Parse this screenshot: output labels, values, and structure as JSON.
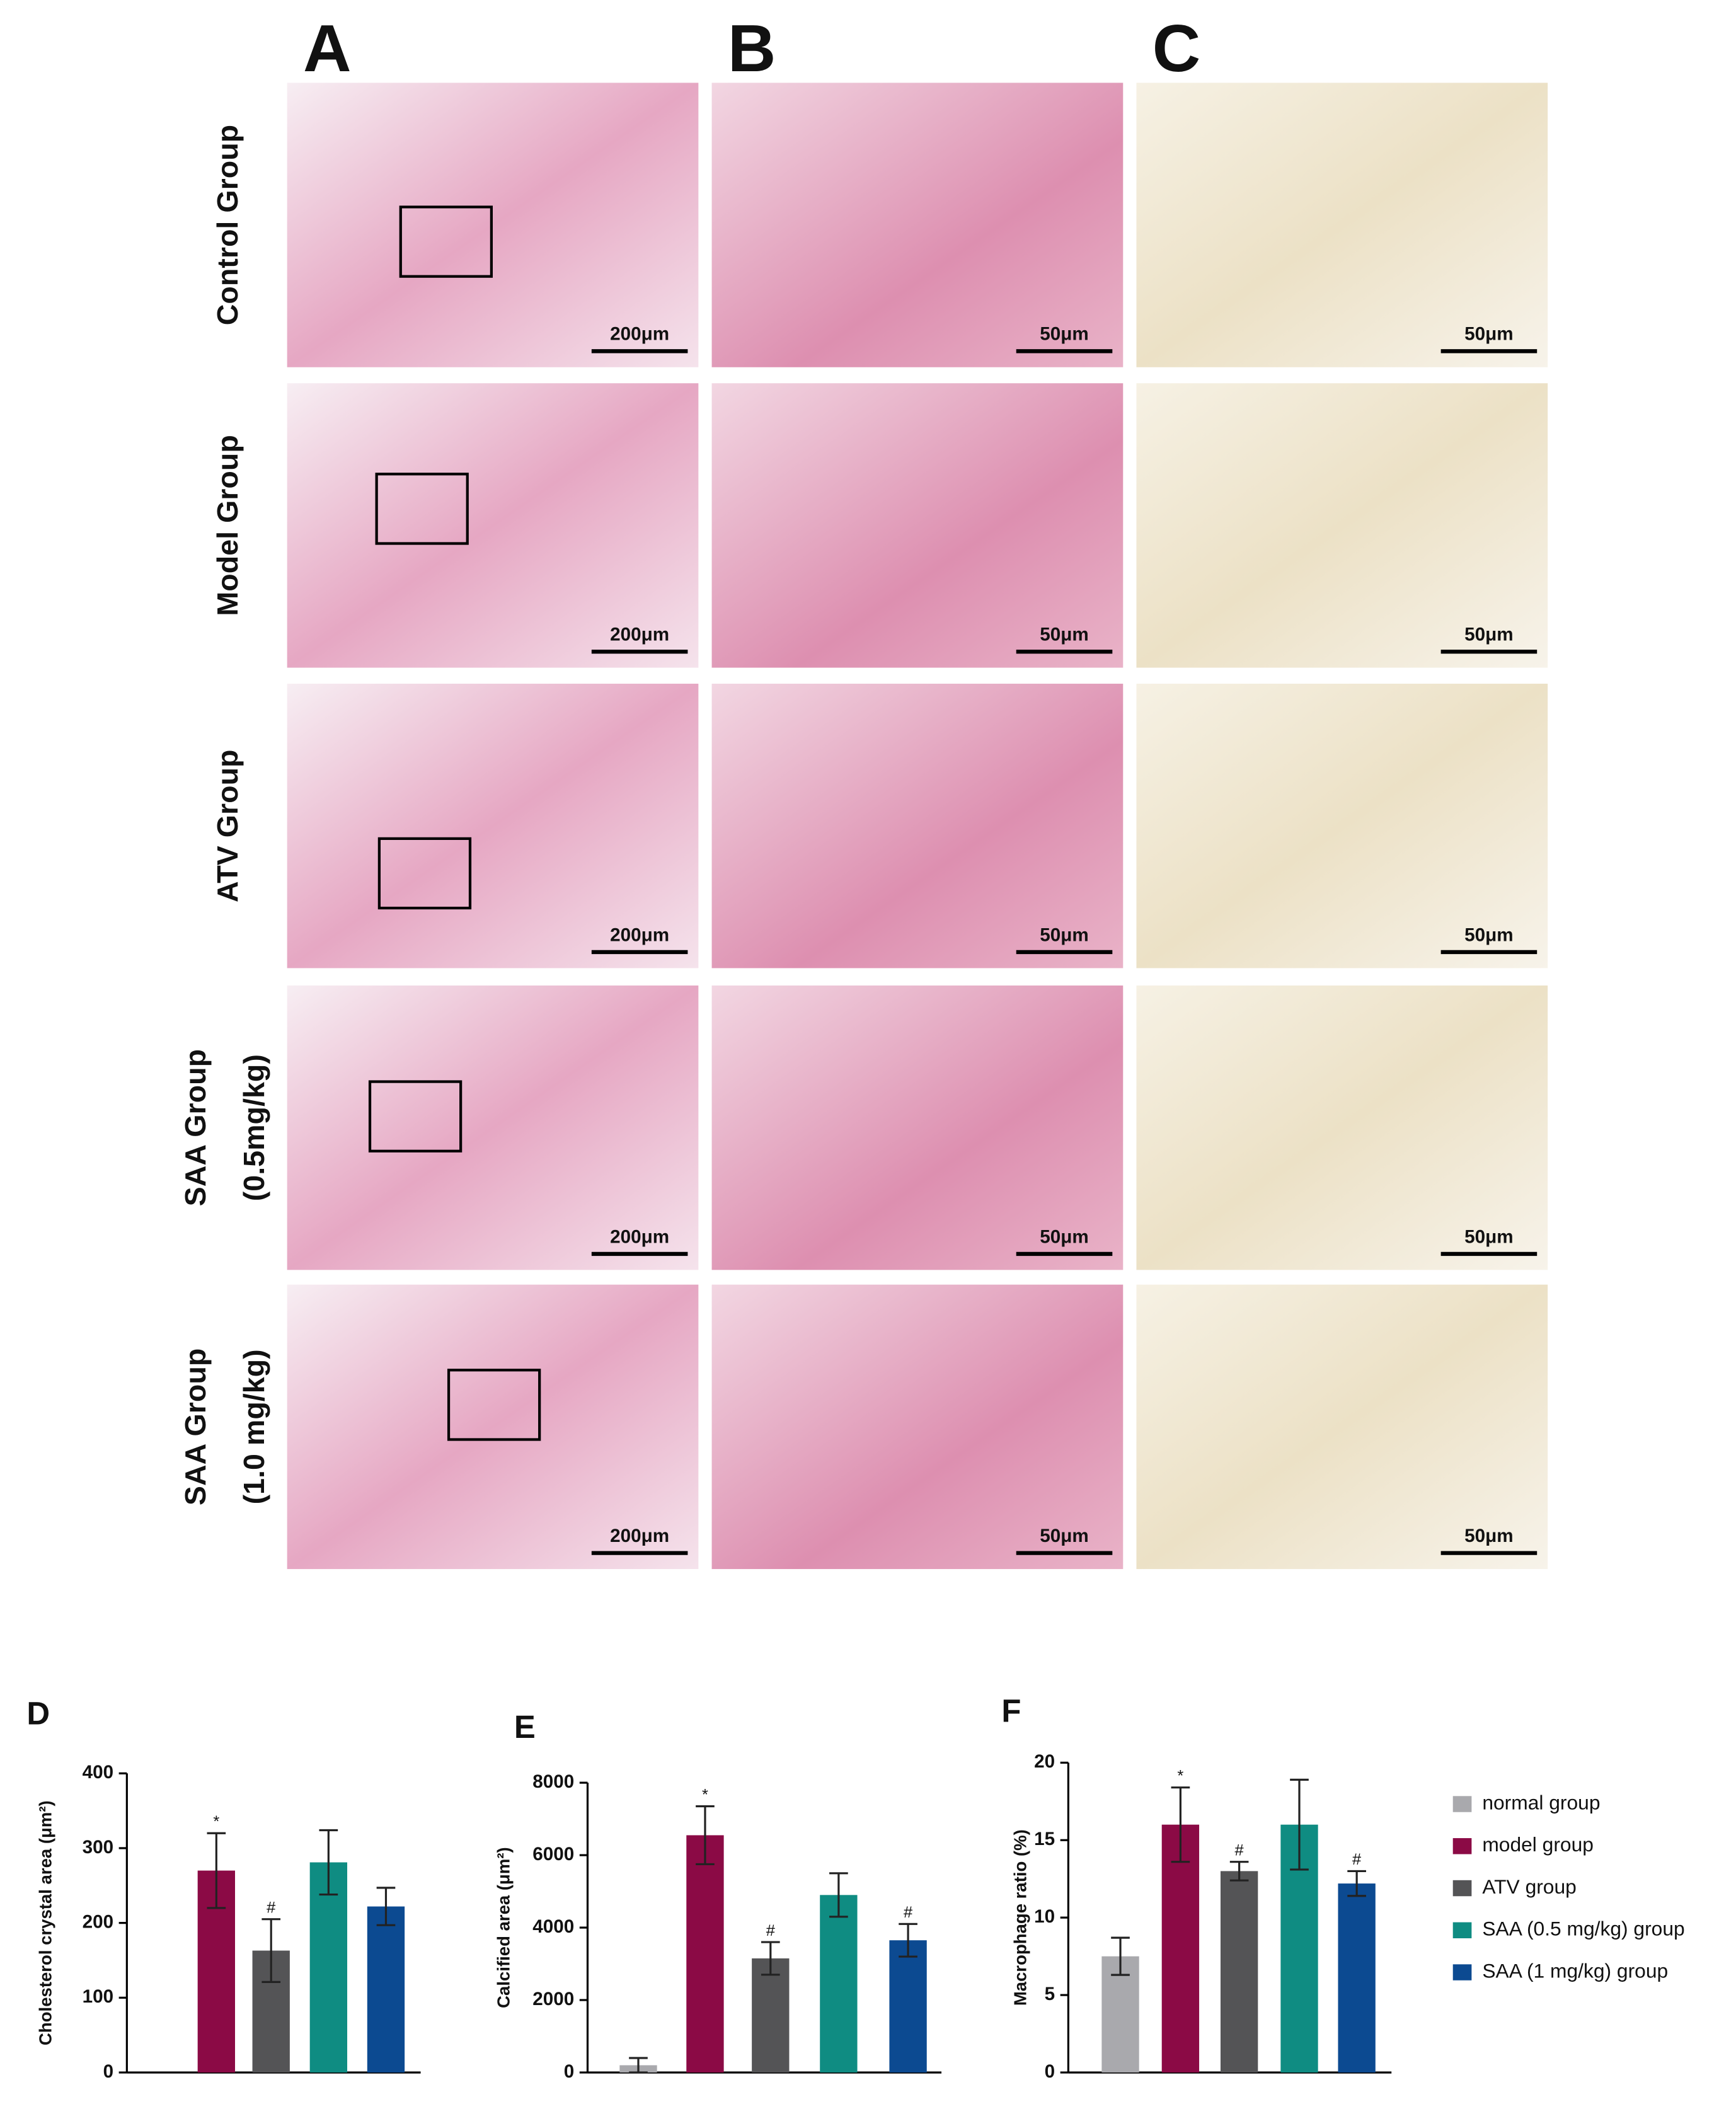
{
  "figure": {
    "columns": [
      "A",
      "B",
      "C"
    ],
    "rows": [
      {
        "label": [
          "Control Group"
        ],
        "scale_bars": [
          "200μm",
          "50μm",
          "50μm"
        ]
      },
      {
        "label": [
          "Model Group"
        ],
        "scale_bars": [
          "200μm",
          "50μm",
          "50μm"
        ]
      },
      {
        "label": [
          "ATV Group"
        ],
        "scale_bars": [
          "200μm",
          "50μm",
          "50μm"
        ]
      },
      {
        "label": [
          "SAA Group",
          "(0.5mg/kg)"
        ],
        "scale_bars": [
          "200μm",
          "50μm",
          "50μm"
        ]
      },
      {
        "label": [
          "SAA Group",
          "(1.0 mg/kg)"
        ],
        "scale_bars": [
          "200μm",
          "50μm",
          "50μm"
        ]
      }
    ]
  },
  "legend": [
    {
      "name": "normal group",
      "color": "#a9a9ad"
    },
    {
      "name": "model group",
      "color": "#8b0a45"
    },
    {
      "name": "ATV group",
      "color": "#545456"
    },
    {
      "name": "SAA (0.5 mg/kg) group",
      "color": "#0f8c82"
    },
    {
      "name": "SAA (1 mg/kg) group",
      "color": "#0c4a91"
    }
  ],
  "chart_data": [
    {
      "type": "bar",
      "panel": "D",
      "y_label": "Cholesterol crystal area (μm²)",
      "values": [
        null,
        270,
        163,
        281,
        222
      ],
      "errors": [
        null,
        50,
        42,
        43,
        25
      ],
      "annotations": [
        null,
        "*",
        "#",
        null,
        null
      ],
      "ylim": [
        0,
        400
      ],
      "yticks": [
        0,
        100,
        200,
        300,
        400
      ]
    },
    {
      "type": "bar",
      "panel": "E",
      "y_label": "Calcified area (μm²)",
      "values": [
        200,
        6550,
        3150,
        4900,
        3650
      ],
      "errors": [
        200,
        800,
        450,
        600,
        450
      ],
      "annotations": [
        null,
        "*",
        "#",
        null,
        "#"
      ],
      "ylim": [
        0,
        8000
      ],
      "yticks": [
        0,
        2000,
        4000,
        6000,
        8000
      ]
    },
    {
      "type": "bar",
      "panel": "F",
      "y_label": "Macrophage ratio (%)",
      "values": [
        7.5,
        16,
        13,
        16,
        12.2
      ],
      "errors": [
        1.2,
        2.4,
        0.6,
        2.9,
        0.8
      ],
      "annotations": [
        null,
        "*",
        "#",
        null,
        "#"
      ],
      "ylim": [
        0,
        20
      ],
      "yticks": [
        0,
        5,
        10,
        15,
        20
      ]
    }
  ]
}
